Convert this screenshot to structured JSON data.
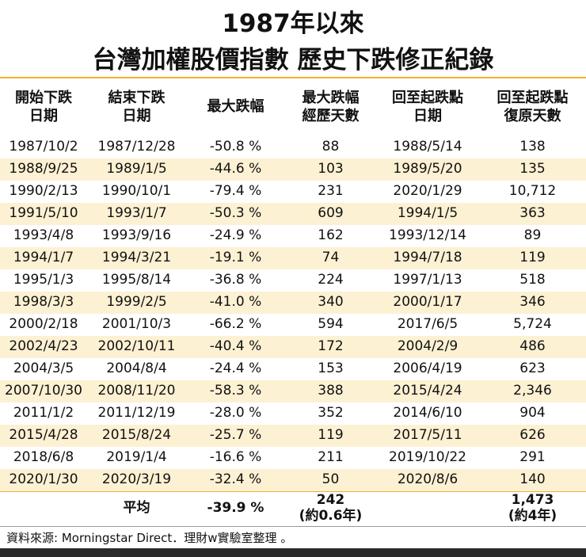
{
  "header": {
    "title_line1": "1987年以來",
    "title_line2": "台灣加權股價指數  歷史下跌修正紀錄"
  },
  "table": {
    "columns": [
      [
        "開始下跌",
        "日期"
      ],
      [
        "結束下跌",
        "日期"
      ],
      [
        "最大跌幅"
      ],
      [
        "最大跌幅",
        "經歷天數"
      ],
      [
        "回至起跌點",
        "日期"
      ],
      [
        "回至起跌點",
        "復原天數"
      ]
    ],
    "rows": [
      [
        "1987/10/2",
        "1987/12/28",
        "-50.8 %",
        "88",
        "1988/5/14",
        "138"
      ],
      [
        "1988/9/25",
        "1989/1/5",
        "-44.6 %",
        "103",
        "1989/5/20",
        "135"
      ],
      [
        "1990/2/13",
        "1990/10/1",
        "-79.4 %",
        "231",
        "2020/1/29",
        "10,712"
      ],
      [
        "1991/5/10",
        "1993/1/7",
        "-50.3 %",
        "609",
        "1994/1/5",
        "363"
      ],
      [
        "1993/4/8",
        "1993/9/16",
        "-24.9 %",
        "162",
        "1993/12/14",
        "89"
      ],
      [
        "1994/1/7",
        "1994/3/21",
        "-19.1 %",
        "74",
        "1994/7/18",
        "119"
      ],
      [
        "1995/1/3",
        "1995/8/14",
        "-36.8 %",
        "224",
        "1997/1/13",
        "518"
      ],
      [
        "1998/3/3",
        "1999/2/5",
        "-41.0 %",
        "340",
        "2000/1/17",
        "346"
      ],
      [
        "2000/2/18",
        "2001/10/3",
        "-66.2 %",
        "594",
        "2017/6/5",
        "5,724"
      ],
      [
        "2002/4/23",
        "2002/10/11",
        "-40.4 %",
        "172",
        "2004/2/9",
        "486"
      ],
      [
        "2004/3/5",
        "2004/8/4",
        "-24.4 %",
        "153",
        "2006/4/19",
        "623"
      ],
      [
        "2007/10/30",
        "2008/11/20",
        "-58.3 %",
        "388",
        "2015/4/24",
        "2,346"
      ],
      [
        "2011/1/2",
        "2011/12/19",
        "-28.0 %",
        "352",
        "2014/6/10",
        "904"
      ],
      [
        "2015/4/28",
        "2015/8/24",
        "-25.7 %",
        "119",
        "2017/5/11",
        "626"
      ],
      [
        "2018/6/8",
        "2019/1/4",
        "-16.6 %",
        "211",
        "2019/10/22",
        "291"
      ],
      [
        "2020/1/30",
        "2020/3/19",
        "-32.4 %",
        "50",
        "2020/8/6",
        "140"
      ]
    ],
    "average": {
      "label": "平均",
      "max_drop": "-39.9 %",
      "days": "242",
      "days_note": "(約0.6年)",
      "recovery_days": "1,473",
      "recovery_note": "(約4年)"
    }
  },
  "footer": {
    "source": "資料來源:  Morningstar Direct．理財w實驗室整理 。"
  }
}
